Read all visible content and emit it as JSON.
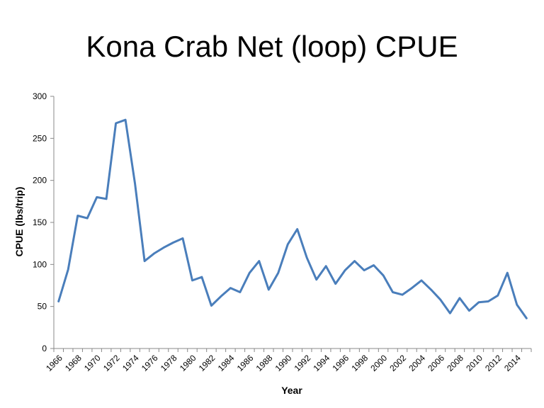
{
  "chart_data": {
    "type": "line",
    "title": "Kona Crab Net (loop) CPUE",
    "xlabel": "Year",
    "ylabel": "CPUE (lbs/trip)",
    "ylim": [
      0,
      300
    ],
    "yticks": [
      0,
      50,
      100,
      150,
      200,
      250,
      300
    ],
    "xtick_labels": [
      "1966",
      "1968",
      "1970",
      "1972",
      "1974",
      "1976",
      "1978",
      "1980",
      "1982",
      "1984",
      "1986",
      "1988",
      "1990",
      "1992",
      "1994",
      "1996",
      "1998",
      "2000",
      "2002",
      "2004",
      "2006",
      "2008",
      "2010",
      "2012",
      "2014"
    ],
    "grid": false,
    "legend": "none",
    "series": [
      {
        "color": "#4a7ebb",
        "x": [
          1966,
          1967,
          1968,
          1969,
          1970,
          1971,
          1972,
          1973,
          1974,
          1975,
          1976,
          1977,
          1978,
          1979,
          1980,
          1981,
          1982,
          1983,
          1984,
          1985,
          1986,
          1987,
          1988,
          1989,
          1990,
          1991,
          1992,
          1993,
          1994,
          1995,
          1996,
          1997,
          1998,
          1999,
          2000,
          2001,
          2002,
          2003,
          2004,
          2005,
          2006,
          2007,
          2008,
          2009,
          2010,
          2011,
          2012,
          2013,
          2014,
          2015
        ],
        "values": [
          56,
          94,
          158,
          155,
          180,
          178,
          268,
          272,
          196,
          104,
          113,
          120,
          126,
          131,
          81,
          85,
          51,
          62,
          72,
          67,
          90,
          104,
          70,
          90,
          124,
          142,
          108,
          82,
          98,
          77,
          93,
          104,
          93,
          99,
          87,
          67,
          64,
          72,
          81,
          70,
          58,
          42,
          60,
          45,
          55,
          56,
          63,
          90,
          52,
          36
        ]
      }
    ]
  }
}
